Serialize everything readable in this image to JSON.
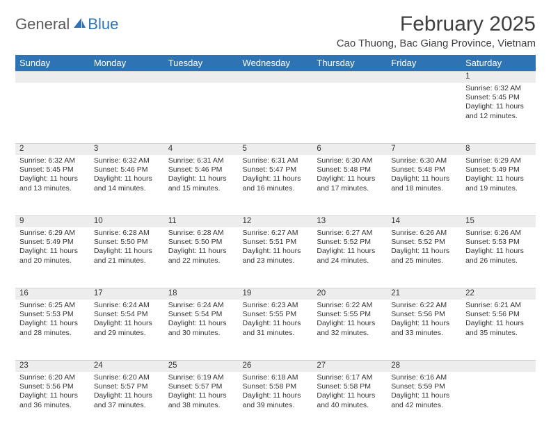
{
  "brand": {
    "part1": "General",
    "part2": "Blue"
  },
  "title": "February 2025",
  "location": "Cao Thuong, Bac Giang Province, Vietnam",
  "colors": {
    "header_bg": "#2e74b5",
    "header_fg": "#ffffff",
    "daynum_bg": "#ededed",
    "text": "#333333",
    "brand_gray": "#5a5a5a",
    "brand_blue": "#2e74b5"
  },
  "day_headers": [
    "Sunday",
    "Monday",
    "Tuesday",
    "Wednesday",
    "Thursday",
    "Friday",
    "Saturday"
  ],
  "weeks": [
    {
      "nums": [
        "",
        "",
        "",
        "",
        "",
        "",
        "1"
      ],
      "cells": [
        [],
        [],
        [],
        [],
        [],
        [],
        [
          "Sunrise: 6:32 AM",
          "Sunset: 5:45 PM",
          "Daylight: 11 hours",
          "and 12 minutes."
        ]
      ]
    },
    {
      "nums": [
        "2",
        "3",
        "4",
        "5",
        "6",
        "7",
        "8"
      ],
      "cells": [
        [
          "Sunrise: 6:32 AM",
          "Sunset: 5:45 PM",
          "Daylight: 11 hours",
          "and 13 minutes."
        ],
        [
          "Sunrise: 6:32 AM",
          "Sunset: 5:46 PM",
          "Daylight: 11 hours",
          "and 14 minutes."
        ],
        [
          "Sunrise: 6:31 AM",
          "Sunset: 5:46 PM",
          "Daylight: 11 hours",
          "and 15 minutes."
        ],
        [
          "Sunrise: 6:31 AM",
          "Sunset: 5:47 PM",
          "Daylight: 11 hours",
          "and 16 minutes."
        ],
        [
          "Sunrise: 6:30 AM",
          "Sunset: 5:48 PM",
          "Daylight: 11 hours",
          "and 17 minutes."
        ],
        [
          "Sunrise: 6:30 AM",
          "Sunset: 5:48 PM",
          "Daylight: 11 hours",
          "and 18 minutes."
        ],
        [
          "Sunrise: 6:29 AM",
          "Sunset: 5:49 PM",
          "Daylight: 11 hours",
          "and 19 minutes."
        ]
      ]
    },
    {
      "nums": [
        "9",
        "10",
        "11",
        "12",
        "13",
        "14",
        "15"
      ],
      "cells": [
        [
          "Sunrise: 6:29 AM",
          "Sunset: 5:49 PM",
          "Daylight: 11 hours",
          "and 20 minutes."
        ],
        [
          "Sunrise: 6:28 AM",
          "Sunset: 5:50 PM",
          "Daylight: 11 hours",
          "and 21 minutes."
        ],
        [
          "Sunrise: 6:28 AM",
          "Sunset: 5:50 PM",
          "Daylight: 11 hours",
          "and 22 minutes."
        ],
        [
          "Sunrise: 6:27 AM",
          "Sunset: 5:51 PM",
          "Daylight: 11 hours",
          "and 23 minutes."
        ],
        [
          "Sunrise: 6:27 AM",
          "Sunset: 5:52 PM",
          "Daylight: 11 hours",
          "and 24 minutes."
        ],
        [
          "Sunrise: 6:26 AM",
          "Sunset: 5:52 PM",
          "Daylight: 11 hours",
          "and 25 minutes."
        ],
        [
          "Sunrise: 6:26 AM",
          "Sunset: 5:53 PM",
          "Daylight: 11 hours",
          "and 26 minutes."
        ]
      ]
    },
    {
      "nums": [
        "16",
        "17",
        "18",
        "19",
        "20",
        "21",
        "22"
      ],
      "cells": [
        [
          "Sunrise: 6:25 AM",
          "Sunset: 5:53 PM",
          "Daylight: 11 hours",
          "and 28 minutes."
        ],
        [
          "Sunrise: 6:24 AM",
          "Sunset: 5:54 PM",
          "Daylight: 11 hours",
          "and 29 minutes."
        ],
        [
          "Sunrise: 6:24 AM",
          "Sunset: 5:54 PM",
          "Daylight: 11 hours",
          "and 30 minutes."
        ],
        [
          "Sunrise: 6:23 AM",
          "Sunset: 5:55 PM",
          "Daylight: 11 hours",
          "and 31 minutes."
        ],
        [
          "Sunrise: 6:22 AM",
          "Sunset: 5:55 PM",
          "Daylight: 11 hours",
          "and 32 minutes."
        ],
        [
          "Sunrise: 6:22 AM",
          "Sunset: 5:56 PM",
          "Daylight: 11 hours",
          "and 33 minutes."
        ],
        [
          "Sunrise: 6:21 AM",
          "Sunset: 5:56 PM",
          "Daylight: 11 hours",
          "and 35 minutes."
        ]
      ]
    },
    {
      "nums": [
        "23",
        "24",
        "25",
        "26",
        "27",
        "28",
        ""
      ],
      "cells": [
        [
          "Sunrise: 6:20 AM",
          "Sunset: 5:56 PM",
          "Daylight: 11 hours",
          "and 36 minutes."
        ],
        [
          "Sunrise: 6:20 AM",
          "Sunset: 5:57 PM",
          "Daylight: 11 hours",
          "and 37 minutes."
        ],
        [
          "Sunrise: 6:19 AM",
          "Sunset: 5:57 PM",
          "Daylight: 11 hours",
          "and 38 minutes."
        ],
        [
          "Sunrise: 6:18 AM",
          "Sunset: 5:58 PM",
          "Daylight: 11 hours",
          "and 39 minutes."
        ],
        [
          "Sunrise: 6:17 AM",
          "Sunset: 5:58 PM",
          "Daylight: 11 hours",
          "and 40 minutes."
        ],
        [
          "Sunrise: 6:16 AM",
          "Sunset: 5:59 PM",
          "Daylight: 11 hours",
          "and 42 minutes."
        ],
        []
      ]
    }
  ]
}
